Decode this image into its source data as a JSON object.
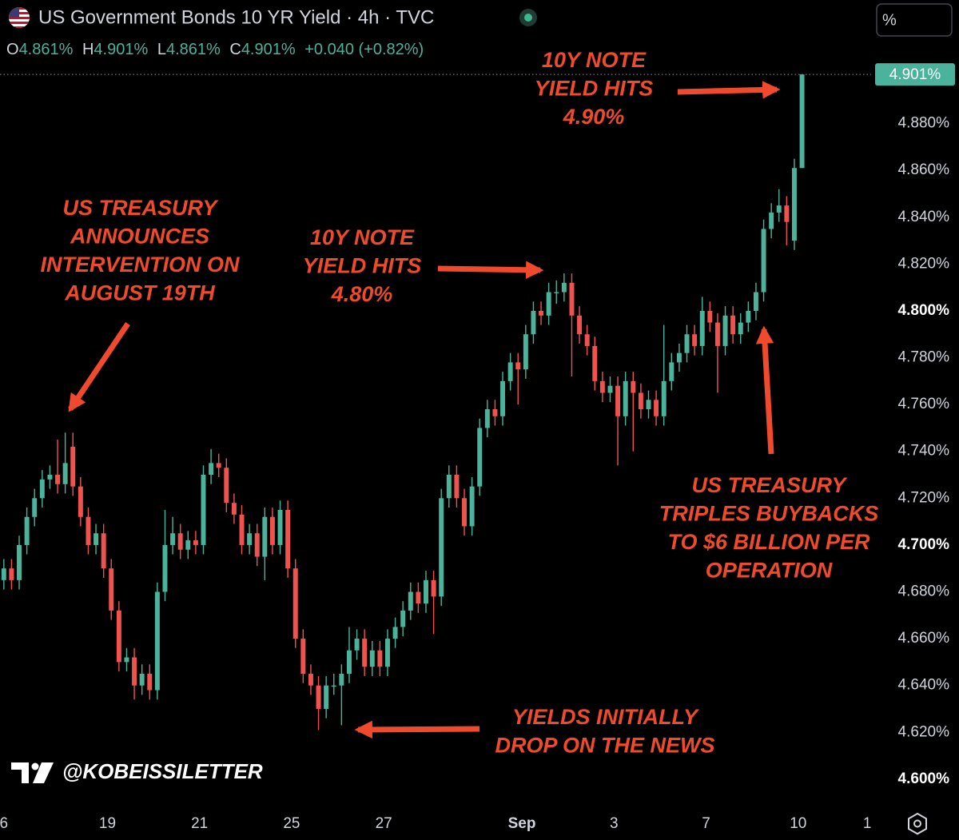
{
  "chart_data": {
    "type": "candlestick",
    "title": "US Government Bonds 10 YR Yield · 4h · TVC",
    "ohlc_header": {
      "o_label": "O",
      "o_value": "4.861%",
      "h_label": "H",
      "h_value": "4.901%",
      "l_label": "L",
      "l_value": "4.861%",
      "c_label": "C",
      "c_value": "4.901%",
      "change": "+0.040 (+0.82%)"
    },
    "scale_button": "%",
    "last_price_label": "4.901%",
    "watermark": "@KOBEISSILETTER",
    "up_color": "#4bb39c",
    "down_color": "#ef5350",
    "x": [
      0,
      1,
      2,
      3,
      4,
      5,
      6,
      7,
      8,
      9,
      10,
      11,
      12,
      13,
      14,
      15,
      16,
      17,
      18,
      19,
      20,
      21,
      22,
      23,
      24,
      25,
      26,
      27,
      28,
      29,
      30,
      31,
      32,
      33,
      34,
      35,
      36,
      37,
      38,
      39,
      40,
      41,
      42,
      43,
      44,
      45,
      46,
      47,
      48,
      49,
      50,
      51,
      52,
      53,
      54,
      55,
      56,
      57,
      58,
      59,
      60,
      61,
      62,
      63,
      64,
      65,
      66,
      67,
      68,
      69,
      70,
      71,
      72,
      73,
      74,
      75,
      76,
      77,
      78,
      79,
      80,
      81,
      82,
      83,
      84,
      85,
      86,
      87,
      88,
      89,
      90,
      91,
      92,
      93,
      94,
      95,
      96,
      97,
      98,
      99,
      100,
      101,
      102,
      103,
      104
    ],
    "open": [
      4.685,
      4.69,
      4.685,
      4.7,
      4.712,
      4.72,
      4.728,
      4.73,
      4.726,
      4.742,
      4.725,
      4.712,
      4.7,
      4.705,
      4.69,
      4.672,
      4.65,
      4.652,
      4.64,
      4.645,
      4.638,
      4.68,
      4.7,
      4.705,
      4.698,
      4.702,
      4.7,
      4.73,
      4.735,
      4.733,
      4.718,
      4.713,
      4.7,
      4.705,
      4.695,
      4.712,
      4.7,
      4.715,
      4.69,
      4.66,
      4.645,
      4.64,
      4.63,
      4.64,
      4.64,
      4.645,
      4.655,
      4.66,
      4.648,
      4.655,
      4.648,
      4.66,
      4.665,
      4.672,
      4.68,
      4.675,
      4.685,
      4.678,
      4.72,
      4.73,
      4.72,
      4.708,
      4.725,
      4.75,
      4.758,
      4.755,
      4.77,
      4.778,
      4.775,
      4.79,
      4.8,
      4.798,
      4.808,
      4.808,
      4.812,
      4.798,
      4.79,
      4.785,
      4.77,
      4.765,
      4.768,
      4.755,
      4.77,
      4.765,
      4.758,
      4.762,
      4.755,
      4.77,
      4.778,
      4.782,
      4.79,
      4.785,
      4.8,
      4.795,
      4.785,
      4.798,
      4.79,
      4.795,
      4.8,
      4.808,
      4.835,
      4.842,
      4.845,
      4.83,
      4.861
    ],
    "high": [
      4.694,
      4.694,
      4.704,
      4.716,
      4.724,
      4.732,
      4.734,
      4.745,
      4.748,
      4.748,
      4.729,
      4.716,
      4.709,
      4.709,
      4.694,
      4.676,
      4.656,
      4.656,
      4.649,
      4.649,
      4.684,
      4.715,
      4.712,
      4.709,
      4.706,
      4.706,
      4.734,
      4.741,
      4.739,
      4.737,
      4.722,
      4.717,
      4.709,
      4.709,
      4.716,
      4.716,
      4.719,
      4.719,
      4.694,
      4.664,
      4.649,
      4.644,
      4.644,
      4.645,
      4.649,
      4.665,
      4.664,
      4.664,
      4.659,
      4.659,
      4.664,
      4.669,
      4.676,
      4.684,
      4.684,
      4.689,
      4.689,
      4.724,
      4.734,
      4.734,
      4.724,
      4.729,
      4.754,
      4.762,
      4.762,
      4.774,
      4.782,
      4.782,
      4.794,
      4.804,
      4.804,
      4.812,
      4.813,
      4.816,
      4.816,
      4.802,
      4.794,
      4.789,
      4.774,
      4.772,
      4.772,
      4.774,
      4.774,
      4.769,
      4.766,
      4.766,
      4.794,
      4.782,
      4.786,
      4.794,
      4.794,
      4.806,
      4.804,
      4.799,
      4.802,
      4.802,
      4.799,
      4.804,
      4.812,
      4.839,
      4.846,
      4.852,
      4.849,
      4.865,
      4.901
    ],
    "low": [
      4.681,
      4.681,
      4.681,
      4.696,
      4.708,
      4.716,
      4.724,
      4.722,
      4.722,
      4.721,
      4.708,
      4.696,
      4.696,
      4.686,
      4.668,
      4.646,
      4.646,
      4.634,
      4.636,
      4.634,
      4.634,
      4.676,
      4.696,
      4.694,
      4.694,
      4.696,
      4.696,
      4.726,
      4.729,
      4.714,
      4.709,
      4.696,
      4.696,
      4.691,
      4.685,
      4.696,
      4.696,
      4.686,
      4.656,
      4.641,
      4.636,
      4.621,
      4.626,
      4.636,
      4.623,
      4.641,
      4.651,
      4.644,
      4.644,
      4.644,
      4.644,
      4.656,
      4.661,
      4.668,
      4.671,
      4.671,
      4.662,
      4.674,
      4.716,
      4.716,
      4.704,
      4.704,
      4.721,
      4.746,
      4.751,
      4.751,
      4.766,
      4.76,
      4.771,
      4.786,
      4.794,
      4.794,
      4.803,
      4.804,
      4.772,
      4.786,
      4.781,
      4.766,
      4.761,
      4.761,
      4.734,
      4.751,
      4.74,
      4.754,
      4.754,
      4.751,
      4.751,
      4.766,
      4.774,
      4.778,
      4.781,
      4.781,
      4.791,
      4.765,
      4.781,
      4.786,
      4.786,
      4.791,
      4.796,
      4.804,
      4.831,
      4.838,
      4.828,
      4.826,
      4.861
    ],
    "close": [
      4.69,
      4.685,
      4.7,
      4.712,
      4.72,
      4.728,
      4.73,
      4.726,
      4.735,
      4.725,
      4.712,
      4.7,
      4.705,
      4.69,
      4.672,
      4.65,
      4.652,
      4.64,
      4.645,
      4.638,
      4.68,
      4.7,
      4.705,
      4.698,
      4.702,
      4.7,
      4.73,
      4.735,
      4.733,
      4.718,
      4.713,
      4.7,
      4.705,
      4.695,
      4.712,
      4.7,
      4.715,
      4.69,
      4.66,
      4.645,
      4.64,
      4.63,
      4.64,
      4.64,
      4.645,
      4.655,
      4.66,
      4.648,
      4.655,
      4.648,
      4.66,
      4.665,
      4.672,
      4.68,
      4.675,
      4.685,
      4.678,
      4.72,
      4.73,
      4.72,
      4.708,
      4.725,
      4.75,
      4.758,
      4.755,
      4.77,
      4.778,
      4.775,
      4.79,
      4.8,
      4.798,
      4.808,
      4.808,
      4.812,
      4.798,
      4.79,
      4.785,
      4.77,
      4.765,
      4.768,
      4.755,
      4.77,
      4.765,
      4.758,
      4.762,
      4.755,
      4.77,
      4.778,
      4.782,
      4.79,
      4.785,
      4.8,
      4.795,
      4.785,
      4.798,
      4.79,
      4.795,
      4.8,
      4.808,
      4.835,
      4.842,
      4.845,
      4.838,
      4.861,
      4.901
    ],
    "xlim": [
      -0.5,
      113
    ],
    "xticks": [
      {
        "value": 0,
        "label": "6"
      },
      {
        "value": 13.5,
        "label": "19"
      },
      {
        "value": 25.5,
        "label": "21"
      },
      {
        "value": 37.5,
        "label": "25"
      },
      {
        "value": 49.5,
        "label": "27"
      },
      {
        "value": 67.5,
        "label": "Sep"
      },
      {
        "value": 79.5,
        "label": "3"
      },
      {
        "value": 91.5,
        "label": "7"
      },
      {
        "value": 103.5,
        "label": "10"
      },
      {
        "value": 112.5,
        "label": "1"
      }
    ],
    "ylim": [
      4.588,
      4.904
    ],
    "yticks": [
      {
        "value": 4.6,
        "label": "4.600%"
      },
      {
        "value": 4.62,
        "label": "4.620%"
      },
      {
        "value": 4.64,
        "label": "4.640%"
      },
      {
        "value": 4.66,
        "label": "4.660%"
      },
      {
        "value": 4.68,
        "label": "4.680%"
      },
      {
        "value": 4.7,
        "label": "4.700%"
      },
      {
        "value": 4.72,
        "label": "4.720%"
      },
      {
        "value": 4.74,
        "label": "4.740%"
      },
      {
        "value": 4.76,
        "label": "4.760%"
      },
      {
        "value": 4.78,
        "label": "4.780%"
      },
      {
        "value": 4.8,
        "label": "4.800%"
      },
      {
        "value": 4.82,
        "label": "4.820%"
      },
      {
        "value": 4.84,
        "label": "4.840%"
      },
      {
        "value": 4.86,
        "label": "4.860%"
      },
      {
        "value": 4.88,
        "label": "4.880%"
      }
    ],
    "annotations": [
      {
        "lines": [
          "US TREASURY",
          "ANNOUNCES",
          "INTERVENTION ON",
          "AUGUST 19TH"
        ]
      },
      {
        "lines": [
          "10Y NOTE",
          "YIELD HITS",
          "4.80%"
        ]
      },
      {
        "lines": [
          "10Y NOTE",
          "YIELD HITS",
          "4.90%"
        ]
      },
      {
        "lines": [
          "US TREASURY",
          "TRIPLES BUYBACKS",
          "TO $6 BILLION PER",
          "OPERATION"
        ]
      },
      {
        "lines": [
          "YIELDS INITIALLY",
          "DROP ON THE NEWS"
        ]
      }
    ]
  }
}
